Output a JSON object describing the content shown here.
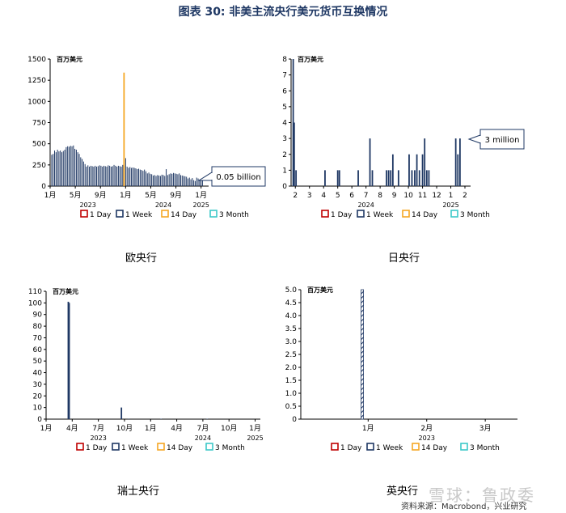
{
  "page_title": "图表 30: 非美主流央行美元货币互换情况",
  "source": "资料来源：Macrobond，兴业研究",
  "watermark": "雪球：鲁政委",
  "legend_labels": [
    "1 Day",
    "1 Week",
    "14 Day",
    "3 Month"
  ],
  "colors": {
    "one_day": "#c00000",
    "one_week": "#1f3864",
    "fourteen_day": "#f5a623",
    "three_month": "#3cc8c8",
    "axis": "#000000",
    "title": "#1f3864",
    "callout_border": "#1f3864"
  },
  "chart_data": [
    {
      "type": "bar",
      "caption": "欧央行",
      "unit_label": "百万美元",
      "callout": "0.05 billion",
      "ylim": [
        0,
        1500
      ],
      "y_ticks": [
        0,
        250,
        500,
        750,
        1000,
        1250,
        1500
      ],
      "x_ticks": [
        {
          "label": "1月",
          "m": 0
        },
        {
          "label": "5月",
          "m": 4
        },
        {
          "label": "9月",
          "m": 8
        },
        {
          "label": "1月",
          "m": 12
        },
        {
          "label": "5月",
          "m": 16
        },
        {
          "label": "9月",
          "m": 20
        },
        {
          "label": "1月",
          "m": 24
        }
      ],
      "year_labels": [
        {
          "label": "2023",
          "m": 6
        },
        {
          "label": "2024",
          "m": 18
        },
        {
          "label": "2025",
          "m": 24
        }
      ],
      "x_range_months": [
        0,
        25.2
      ],
      "series": [
        {
          "name": "1 Week",
          "key": "one_week",
          "m_start": 0.25,
          "m_step": 0.2305,
          "values": [
            370,
            380,
            420,
            400,
            430,
            410,
            420,
            400,
            415,
            430,
            460,
            470,
            465,
            475,
            470,
            480,
            440,
            430,
            400,
            380,
            340,
            320,
            290,
            260,
            230,
            245,
            230,
            240,
            235,
            230,
            240,
            230,
            235,
            245,
            240,
            230,
            240,
            235,
            230,
            245,
            240,
            230,
            235,
            250,
            240,
            230,
            240,
            235,
            230,
            250,
            240,
            330,
            230,
            215,
            225,
            215,
            220,
            215,
            210,
            200,
            205,
            195,
            190,
            180,
            195,
            175,
            150,
            160,
            145,
            140,
            125,
            130,
            120,
            130,
            125,
            120,
            135,
            130,
            120,
            200,
            130,
            140,
            150,
            145,
            155,
            150,
            145,
            140,
            150,
            130,
            125,
            120,
            115,
            110,
            90,
            100,
            80,
            95,
            70,
            60,
            100,
            90,
            75,
            65,
            70
          ]
        },
        {
          "name": "14 Day",
          "key": "fourteen_day",
          "points": [
            {
              "m": 11.75,
              "v": 1340
            }
          ]
        }
      ]
    },
    {
      "type": "bar",
      "caption": "日央行",
      "unit_label": "百万美元",
      "callout": "3 million",
      "ylim": [
        0,
        8
      ],
      "y_ticks": [
        0,
        1,
        2,
        3,
        4,
        5,
        6,
        7,
        8
      ],
      "x_ticks": [
        {
          "label": "2",
          "m": 1
        },
        {
          "label": "3",
          "m": 2
        },
        {
          "label": "4",
          "m": 3
        },
        {
          "label": "5",
          "m": 4
        },
        {
          "label": "6",
          "m": 5
        },
        {
          "label": "7",
          "m": 6
        },
        {
          "label": "8",
          "m": 7
        },
        {
          "label": "9",
          "m": 8
        },
        {
          "label": "10",
          "m": 9
        },
        {
          "label": "11",
          "m": 10
        },
        {
          "label": "12",
          "m": 11
        },
        {
          "label": "1",
          "m": 12
        },
        {
          "label": "2",
          "m": 13
        }
      ],
      "year_labels": [
        {
          "label": "2024",
          "m": 6
        },
        {
          "label": "2025",
          "m": 12
        }
      ],
      "x_range_months": [
        0.7,
        13.4
      ],
      "series": [
        {
          "name": "1 Week",
          "key": "one_week",
          "points": [
            {
              "m": 0.85,
              "v": 8
            },
            {
              "m": 0.92,
              "v": 4
            },
            {
              "m": 1.05,
              "v": 1
            },
            {
              "m": 3.1,
              "v": 1
            },
            {
              "m": 4.0,
              "v": 1
            },
            {
              "m": 4.12,
              "v": 1
            },
            {
              "m": 5.45,
              "v": 1
            },
            {
              "m": 6.28,
              "v": 3
            },
            {
              "m": 6.45,
              "v": 1
            },
            {
              "m": 7.45,
              "v": 1
            },
            {
              "m": 7.6,
              "v": 1
            },
            {
              "m": 7.75,
              "v": 1
            },
            {
              "m": 7.9,
              "v": 2
            },
            {
              "m": 8.3,
              "v": 1
            },
            {
              "m": 9.05,
              "v": 2
            },
            {
              "m": 9.25,
              "v": 1
            },
            {
              "m": 9.45,
              "v": 1
            },
            {
              "m": 9.6,
              "v": 2
            },
            {
              "m": 9.78,
              "v": 1
            },
            {
              "m": 10.0,
              "v": 2
            },
            {
              "m": 10.15,
              "v": 3
            },
            {
              "m": 10.3,
              "v": 1
            },
            {
              "m": 10.45,
              "v": 1
            },
            {
              "m": 12.35,
              "v": 3
            },
            {
              "m": 12.5,
              "v": 2
            },
            {
              "m": 12.65,
              "v": 3
            }
          ]
        }
      ]
    },
    {
      "type": "bar",
      "caption": "瑞士央行",
      "unit_label": "百万美元",
      "ylim": [
        0,
        110
      ],
      "y_ticks": [
        0,
        10,
        20,
        30,
        40,
        50,
        60,
        70,
        80,
        90,
        100,
        110
      ],
      "x_ticks": [
        {
          "label": "1月",
          "m": 0
        },
        {
          "label": "4月",
          "m": 3
        },
        {
          "label": "7月",
          "m": 6
        },
        {
          "label": "10月",
          "m": 9
        },
        {
          "label": "1月",
          "m": 12
        },
        {
          "label": "4月",
          "m": 15
        },
        {
          "label": "7月",
          "m": 18
        },
        {
          "label": "10月",
          "m": 21
        },
        {
          "label": "1月",
          "m": 24
        }
      ],
      "year_labels": [
        {
          "label": "2023",
          "m": 6
        },
        {
          "label": "2024",
          "m": 18
        },
        {
          "label": "2025",
          "m": 24
        }
      ],
      "x_range_months": [
        0,
        24.6
      ],
      "series": [
        {
          "name": "1 Week",
          "key": "one_week",
          "points": [
            {
              "m": 2.55,
              "v": 101
            },
            {
              "m": 2.65,
              "v": 100
            },
            {
              "m": 8.65,
              "v": 10
            },
            {
              "m": 9.5,
              "v": 0.4
            },
            {
              "m": 13.2,
              "v": 0.3
            },
            {
              "m": 18.5,
              "v": 0.3
            }
          ]
        }
      ]
    },
    {
      "type": "bar",
      "caption": "英央行",
      "unit_label": "百万美元",
      "ylim": [
        0,
        5
      ],
      "y_ticks": [
        0,
        0.5,
        1.0,
        1.5,
        2.0,
        2.5,
        3.0,
        3.5,
        4.0,
        4.5,
        5.0
      ],
      "y_tick_labels": [
        "0",
        "0.5",
        "1.0",
        "1.5",
        "2.0",
        "2.5",
        "3.0",
        "3.5",
        "4.0",
        "4.5",
        "5.0"
      ],
      "x_ticks": [
        {
          "label": "1月",
          "m": 0
        },
        {
          "label": "2月",
          "m": 1
        },
        {
          "label": "3月",
          "m": 2
        }
      ],
      "year_labels": [
        {
          "label": "2023",
          "m": 1
        }
      ],
      "x_range_months": [
        -1.15,
        2.55
      ],
      "series": [
        {
          "name": "1 Week",
          "key": "one_week",
          "hatched": true,
          "points": [
            {
              "m": -0.1,
              "v": 5
            }
          ]
        }
      ]
    }
  ]
}
